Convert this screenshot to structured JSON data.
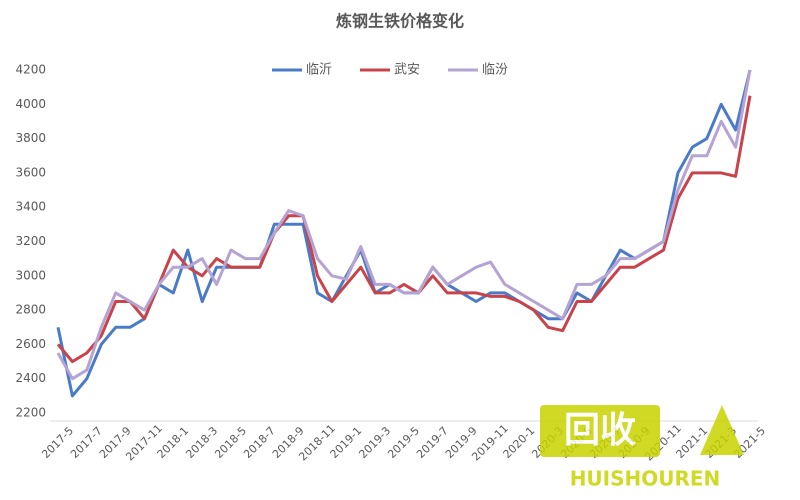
{
  "chart_data": {
    "type": "line",
    "title": "炼钢生铁价格变化",
    "categories": [
      "2017-5",
      null,
      "2017-7",
      null,
      "2017-9",
      null,
      "2017-11",
      null,
      "2018-1",
      null,
      "2018-3",
      null,
      "2018-5",
      null,
      "2018-7",
      null,
      "2018-9",
      null,
      "2018-11",
      null,
      "2019-1",
      null,
      "2019-3",
      null,
      "2019-5",
      null,
      "2019-7",
      null,
      "2019-9",
      null,
      "2019-11",
      null,
      "2020-1",
      null,
      "2020-3",
      null,
      "2020-5",
      null,
      "2020-7",
      null,
      "2020-9",
      null,
      "2020-11",
      null,
      "2021-1",
      null,
      "2021-3",
      null,
      "2021-5"
    ],
    "series": [
      {
        "name": "临沂",
        "color": "#4a7bc8",
        "values": [
          2700,
          2300,
          2400,
          2600,
          2700,
          2700,
          2750,
          2950,
          2900,
          3150,
          2850,
          3050,
          3050,
          3050,
          3050,
          3300,
          3300,
          3300,
          2900,
          2850,
          3000,
          3150,
          2900,
          2950,
          2900,
          2900,
          3050,
          2950,
          2900,
          2850,
          2900,
          2900,
          2850,
          2800,
          2750,
          2750,
          2900,
          2850,
          3000,
          3150,
          3100,
          3150,
          3200,
          3600,
          3750,
          3800,
          4000,
          3850,
          4200
        ]
      },
      {
        "name": "武安",
        "color": "#c9444a",
        "values": [
          2600,
          2500,
          2550,
          2650,
          2850,
          2850,
          2750,
          2950,
          3150,
          3050,
          3000,
          3100,
          3050,
          3050,
          3050,
          3250,
          3350,
          3350,
          3000,
          2850,
          2950,
          3050,
          2900,
          2900,
          2950,
          2900,
          3000,
          2900,
          2900,
          2900,
          2880,
          2880,
          2850,
          2800,
          2700,
          2680,
          2850,
          2850,
          2950,
          3050,
          3050,
          3100,
          3150,
          3450,
          3600,
          3600,
          3600,
          3580,
          4050
        ]
      },
      {
        "name": "临汾",
        "color": "#b5a3d3",
        "values": [
          2550,
          2400,
          2450,
          2700,
          2900,
          2850,
          2800,
          2950,
          3050,
          3050,
          3100,
          2950,
          3150,
          3100,
          3100,
          3250,
          3380,
          3350,
          3100,
          3000,
          2980,
          3170,
          2950,
          2950,
          2900,
          2900,
          3050,
          2950,
          3000,
          3050,
          3080,
          2950,
          2900,
          2850,
          2800,
          2750,
          2950,
          2950,
          3000,
          3100,
          3100,
          3150,
          3200,
          3500,
          3700,
          3700,
          3900,
          3750,
          4200
        ]
      }
    ],
    "ylim": [
      2200,
      4200
    ],
    "yticks": [
      2200,
      2400,
      2600,
      2800,
      3000,
      3200,
      3400,
      3600,
      3800,
      4000,
      4200
    ],
    "grid": false,
    "legend": "top"
  },
  "watermark": {
    "text": "回收",
    "subtext": "HUISHOUREN"
  }
}
